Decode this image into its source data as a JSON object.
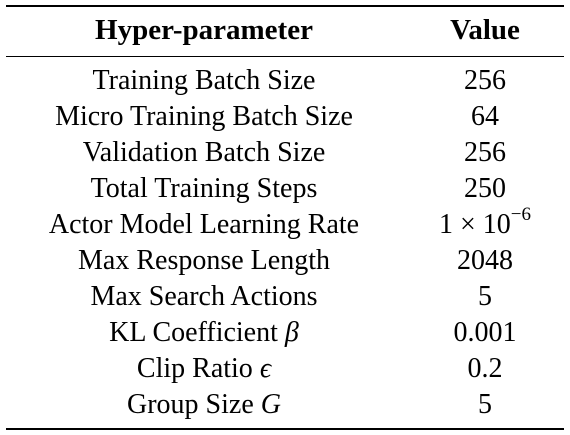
{
  "table": {
    "headers": {
      "param": "Hyper-parameter",
      "value": "Value"
    },
    "rows": [
      {
        "param": "Training Batch Size",
        "value": "256"
      },
      {
        "param": "Micro Training Batch Size",
        "value": "64"
      },
      {
        "param": "Validation Batch Size",
        "value": "256"
      },
      {
        "param": "Total Training Steps",
        "value": "250"
      },
      {
        "param": "Actor Model Learning Rate",
        "value_base": "1 × 10",
        "value_exp": "−6"
      },
      {
        "param": "Max Response Length",
        "value": "2048"
      },
      {
        "param": "Max Search Actions",
        "value": "5"
      },
      {
        "param": "KL Coefficient ",
        "param_symbol": "β",
        "value": "0.001"
      },
      {
        "param": "Clip Ratio ",
        "param_symbol": "ϵ",
        "value": "0.2"
      },
      {
        "param": "Group Size ",
        "param_symbol": "G",
        "value": "5"
      }
    ]
  }
}
